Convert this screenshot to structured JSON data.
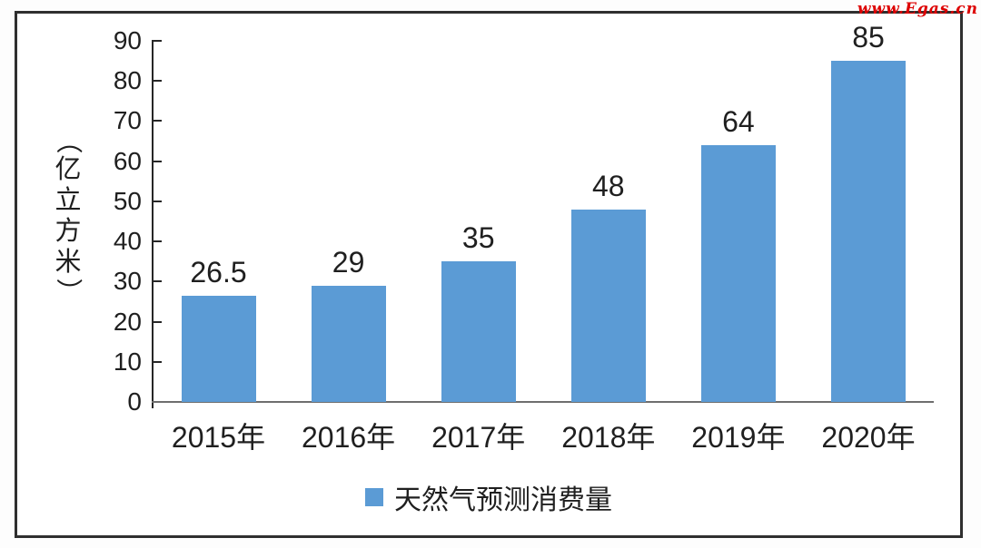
{
  "watermark": "www.Egas.cn",
  "colors": {
    "bar": "#5b9bd5",
    "axis": "#262626",
    "baseline": "#6e6e6e",
    "text": "#1f1f1f",
    "watermark": "#dd0000",
    "frame_border": "#2f2f2f"
  },
  "chart_data": {
    "type": "bar",
    "categories": [
      "2015年",
      "2016年",
      "2017年",
      "2018年",
      "2019年",
      "2020年"
    ],
    "values": [
      26.5,
      29,
      35,
      48,
      64,
      85
    ],
    "data_labels": [
      "26.5",
      "29",
      "35",
      "48",
      "64",
      "85"
    ],
    "title": "",
    "xlabel": "",
    "ylabel": "（亿立方米）",
    "ylabel_vertical_chars": [
      "（",
      "亿",
      "立",
      "方",
      "米",
      "）"
    ],
    "yticks": [
      0,
      10,
      20,
      30,
      40,
      50,
      60,
      70,
      80,
      90
    ],
    "ylim": [
      0,
      90
    ],
    "grid": false,
    "bar_color": "#5b9bd5",
    "legend": {
      "label": "天然气预测消费量",
      "position": "bottom",
      "marker_color": "#5b9bd5"
    }
  }
}
